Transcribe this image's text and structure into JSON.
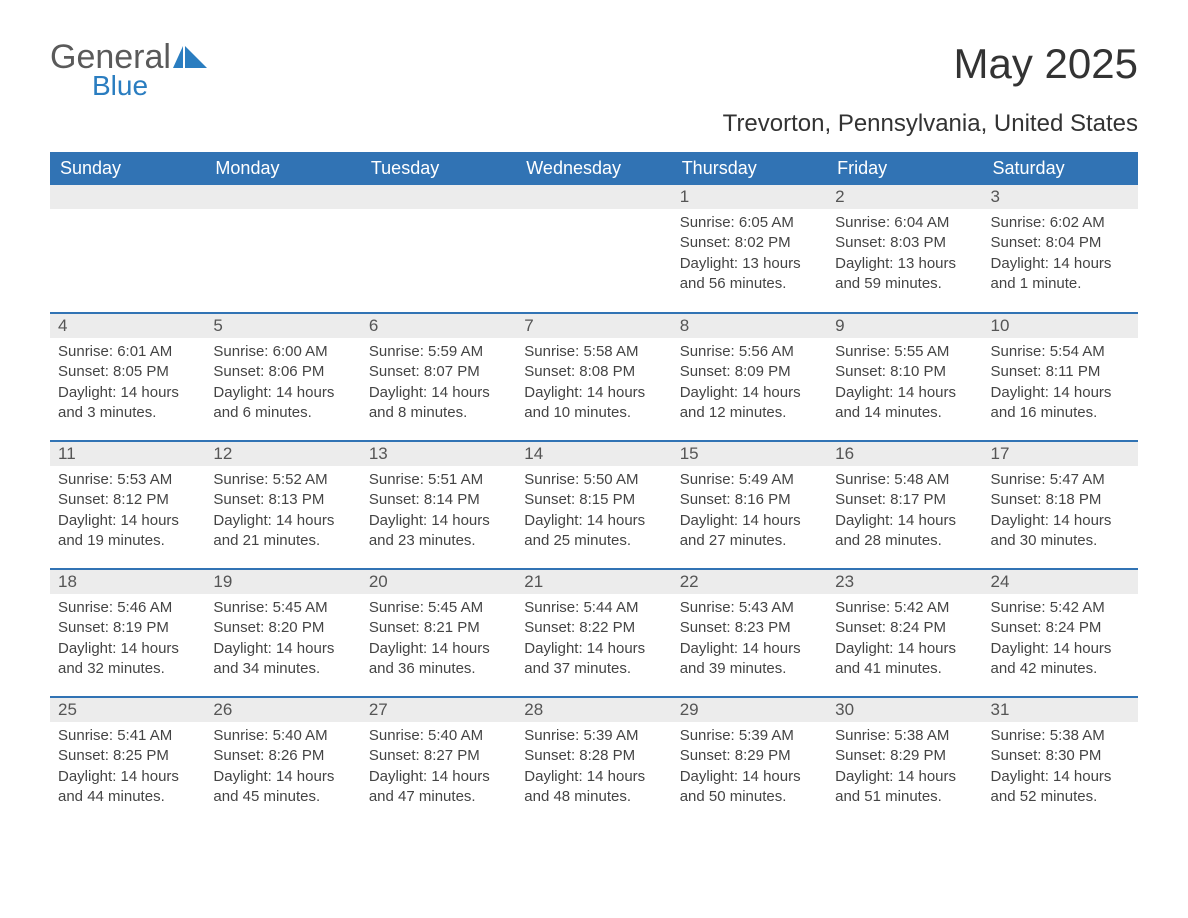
{
  "brand": {
    "name_gray": "General",
    "name_blue": "Blue"
  },
  "title": "May 2025",
  "location": "Trevorton, Pennsylvania, United States",
  "colors": {
    "header_bg": "#3173b4",
    "header_text": "#ffffff",
    "daynum_bg": "#ececec",
    "daynum_text": "#555555",
    "body_text": "#444444",
    "brand_gray": "#5a5a5a",
    "brand_blue": "#2a7dc0",
    "separator": "#3173b4"
  },
  "typography": {
    "month_title_pt": 42,
    "location_pt": 24,
    "weekday_pt": 18,
    "daynum_pt": 17,
    "body_pt": 15,
    "font_family": "Arial"
  },
  "layout": {
    "columns": 7,
    "rows": 5,
    "first_day_column_index": 4
  },
  "weekdays": [
    "Sunday",
    "Monday",
    "Tuesday",
    "Wednesday",
    "Thursday",
    "Friday",
    "Saturday"
  ],
  "labels": {
    "sunrise": "Sunrise: ",
    "sunset": "Sunset: ",
    "daylight": "Daylight: "
  },
  "days": [
    {
      "n": "1",
      "sr": "6:05 AM",
      "ss": "8:02 PM",
      "dl": "13 hours and 56 minutes."
    },
    {
      "n": "2",
      "sr": "6:04 AM",
      "ss": "8:03 PM",
      "dl": "13 hours and 59 minutes."
    },
    {
      "n": "3",
      "sr": "6:02 AM",
      "ss": "8:04 PM",
      "dl": "14 hours and 1 minute."
    },
    {
      "n": "4",
      "sr": "6:01 AM",
      "ss": "8:05 PM",
      "dl": "14 hours and 3 minutes."
    },
    {
      "n": "5",
      "sr": "6:00 AM",
      "ss": "8:06 PM",
      "dl": "14 hours and 6 minutes."
    },
    {
      "n": "6",
      "sr": "5:59 AM",
      "ss": "8:07 PM",
      "dl": "14 hours and 8 minutes."
    },
    {
      "n": "7",
      "sr": "5:58 AM",
      "ss": "8:08 PM",
      "dl": "14 hours and 10 minutes."
    },
    {
      "n": "8",
      "sr": "5:56 AM",
      "ss": "8:09 PM",
      "dl": "14 hours and 12 minutes."
    },
    {
      "n": "9",
      "sr": "5:55 AM",
      "ss": "8:10 PM",
      "dl": "14 hours and 14 minutes."
    },
    {
      "n": "10",
      "sr": "5:54 AM",
      "ss": "8:11 PM",
      "dl": "14 hours and 16 minutes."
    },
    {
      "n": "11",
      "sr": "5:53 AM",
      "ss": "8:12 PM",
      "dl": "14 hours and 19 minutes."
    },
    {
      "n": "12",
      "sr": "5:52 AM",
      "ss": "8:13 PM",
      "dl": "14 hours and 21 minutes."
    },
    {
      "n": "13",
      "sr": "5:51 AM",
      "ss": "8:14 PM",
      "dl": "14 hours and 23 minutes."
    },
    {
      "n": "14",
      "sr": "5:50 AM",
      "ss": "8:15 PM",
      "dl": "14 hours and 25 minutes."
    },
    {
      "n": "15",
      "sr": "5:49 AM",
      "ss": "8:16 PM",
      "dl": "14 hours and 27 minutes."
    },
    {
      "n": "16",
      "sr": "5:48 AM",
      "ss": "8:17 PM",
      "dl": "14 hours and 28 minutes."
    },
    {
      "n": "17",
      "sr": "5:47 AM",
      "ss": "8:18 PM",
      "dl": "14 hours and 30 minutes."
    },
    {
      "n": "18",
      "sr": "5:46 AM",
      "ss": "8:19 PM",
      "dl": "14 hours and 32 minutes."
    },
    {
      "n": "19",
      "sr": "5:45 AM",
      "ss": "8:20 PM",
      "dl": "14 hours and 34 minutes."
    },
    {
      "n": "20",
      "sr": "5:45 AM",
      "ss": "8:21 PM",
      "dl": "14 hours and 36 minutes."
    },
    {
      "n": "21",
      "sr": "5:44 AM",
      "ss": "8:22 PM",
      "dl": "14 hours and 37 minutes."
    },
    {
      "n": "22",
      "sr": "5:43 AM",
      "ss": "8:23 PM",
      "dl": "14 hours and 39 minutes."
    },
    {
      "n": "23",
      "sr": "5:42 AM",
      "ss": "8:24 PM",
      "dl": "14 hours and 41 minutes."
    },
    {
      "n": "24",
      "sr": "5:42 AM",
      "ss": "8:24 PM",
      "dl": "14 hours and 42 minutes."
    },
    {
      "n": "25",
      "sr": "5:41 AM",
      "ss": "8:25 PM",
      "dl": "14 hours and 44 minutes."
    },
    {
      "n": "26",
      "sr": "5:40 AM",
      "ss": "8:26 PM",
      "dl": "14 hours and 45 minutes."
    },
    {
      "n": "27",
      "sr": "5:40 AM",
      "ss": "8:27 PM",
      "dl": "14 hours and 47 minutes."
    },
    {
      "n": "28",
      "sr": "5:39 AM",
      "ss": "8:28 PM",
      "dl": "14 hours and 48 minutes."
    },
    {
      "n": "29",
      "sr": "5:39 AM",
      "ss": "8:29 PM",
      "dl": "14 hours and 50 minutes."
    },
    {
      "n": "30",
      "sr": "5:38 AM",
      "ss": "8:29 PM",
      "dl": "14 hours and 51 minutes."
    },
    {
      "n": "31",
      "sr": "5:38 AM",
      "ss": "8:30 PM",
      "dl": "14 hours and 52 minutes."
    }
  ]
}
